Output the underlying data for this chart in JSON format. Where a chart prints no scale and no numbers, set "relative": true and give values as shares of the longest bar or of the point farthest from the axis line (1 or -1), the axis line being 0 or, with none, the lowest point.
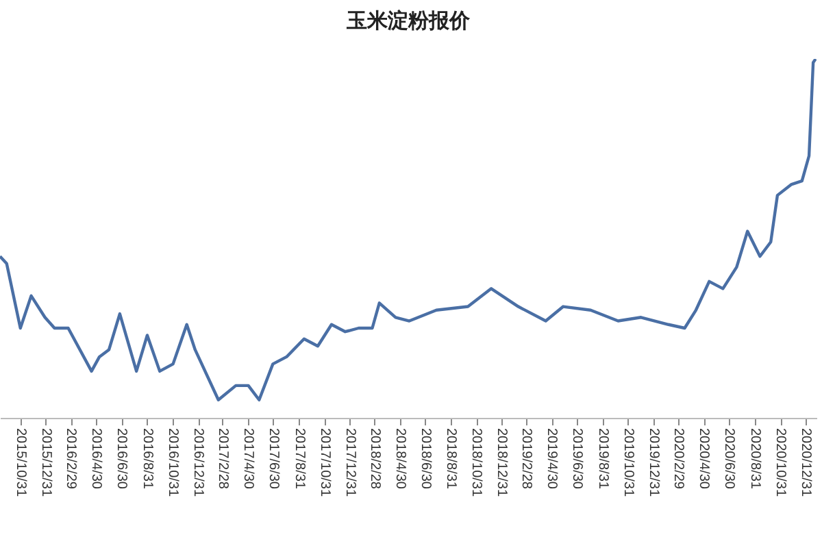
{
  "chart_data": {
    "type": "line",
    "title": "玉米淀粉报价",
    "relative": true,
    "x": [
      "2015-09-12",
      "2015-09-28",
      "2015-10-31",
      "2015-11-26",
      "2015-12-29",
      "2016-01-21",
      "2016-02-23",
      "2016-04-19",
      "2016-05-08",
      "2016-05-31",
      "2016-06-26",
      "2016-08-05",
      "2016-08-31",
      "2016-09-30",
      "2016-11-01",
      "2016-12-04",
      "2016-12-24",
      "2017-02-18",
      "2017-04-01",
      "2017-05-01",
      "2017-05-27",
      "2017-06-29",
      "2017-08-01",
      "2017-09-12",
      "2017-10-15",
      "2017-11-17",
      "2017-12-20",
      "2018-01-21",
      "2018-02-23",
      "2018-03-12",
      "2018-04-20",
      "2018-05-23",
      "2018-07-27",
      "2018-10-11",
      "2018-12-06",
      "2019-02-09",
      "2019-04-16",
      "2019-05-28",
      "2019-08-02",
      "2019-10-07",
      "2019-12-01",
      "2020-02-05",
      "2020-03-15",
      "2020-04-11",
      "2020-05-13",
      "2020-06-15",
      "2020-07-18",
      "2020-08-13",
      "2020-09-12",
      "2020-10-08",
      "2020-10-24",
      "2020-11-26",
      "2020-12-22",
      "2021-01-08",
      "2021-01-18",
      "2021-01-24"
    ],
    "series": [
      {
        "color": "#4a6fa5",
        "values": [
          0.45,
          0.43,
          0.25,
          0.34,
          0.28,
          0.25,
          0.25,
          0.13,
          0.17,
          0.19,
          0.29,
          0.13,
          0.23,
          0.13,
          0.15,
          0.26,
          0.19,
          0.05,
          0.09,
          0.09,
          0.05,
          0.15,
          0.17,
          0.22,
          0.2,
          0.26,
          0.24,
          0.25,
          0.25,
          0.32,
          0.28,
          0.27,
          0.3,
          0.31,
          0.36,
          0.31,
          0.27,
          0.31,
          0.3,
          0.27,
          0.28,
          0.26,
          0.25,
          0.3,
          0.38,
          0.36,
          0.42,
          0.52,
          0.45,
          0.49,
          0.62,
          0.65,
          0.66,
          0.73,
          0.99,
          1
        ]
      }
    ],
    "xlim": [
      "2015-09-12",
      "2021-01-26"
    ],
    "xticks": [
      {
        "value": "2015-10-31",
        "label": "2015/10/31"
      },
      {
        "value": "2015-12-31",
        "label": "2015/12/31"
      },
      {
        "value": "2016-02-29",
        "label": "2016/2/29"
      },
      {
        "value": "2016-04-30",
        "label": "2016/4/30"
      },
      {
        "value": "2016-06-30",
        "label": "2016/6/30"
      },
      {
        "value": "2016-08-31",
        "label": "2016/8/31"
      },
      {
        "value": "2016-10-31",
        "label": "2016/10/31"
      },
      {
        "value": "2016-12-31",
        "label": "2016/12/31"
      },
      {
        "value": "2017-02-28",
        "label": "2017/2/28"
      },
      {
        "value": "2017-04-30",
        "label": "2017/4/30"
      },
      {
        "value": "2017-06-30",
        "label": "2017/6/30"
      },
      {
        "value": "2017-08-31",
        "label": "2017/8/31"
      },
      {
        "value": "2017-10-31",
        "label": "2017/10/31"
      },
      {
        "value": "2017-12-31",
        "label": "2017/12/31"
      },
      {
        "value": "2018-02-28",
        "label": "2018/2/28"
      },
      {
        "value": "2018-04-30",
        "label": "2018/4/30"
      },
      {
        "value": "2018-06-30",
        "label": "2018/6/30"
      },
      {
        "value": "2018-08-31",
        "label": "2018/8/31"
      },
      {
        "value": "2018-10-31",
        "label": "2018/10/31"
      },
      {
        "value": "2018-12-31",
        "label": "2018/12/31"
      },
      {
        "value": "2019-02-28",
        "label": "2019/2/28"
      },
      {
        "value": "2019-04-30",
        "label": "2019/4/30"
      },
      {
        "value": "2019-06-30",
        "label": "2019/6/30"
      },
      {
        "value": "2019-08-31",
        "label": "2019/8/31"
      },
      {
        "value": "2019-10-31",
        "label": "2019/10/31"
      },
      {
        "value": "2019-12-31",
        "label": "2019/12/31"
      },
      {
        "value": "2020-02-29",
        "label": "2020/2/29"
      },
      {
        "value": "2020-04-30",
        "label": "2020/4/30"
      },
      {
        "value": "2020-06-30",
        "label": "2020/6/30"
      },
      {
        "value": "2020-08-31",
        "label": "2020/8/31"
      },
      {
        "value": "2020-10-31",
        "label": "2020/10/31"
      },
      {
        "value": "2020-12-31",
        "label": "2020/12/31"
      }
    ]
  }
}
